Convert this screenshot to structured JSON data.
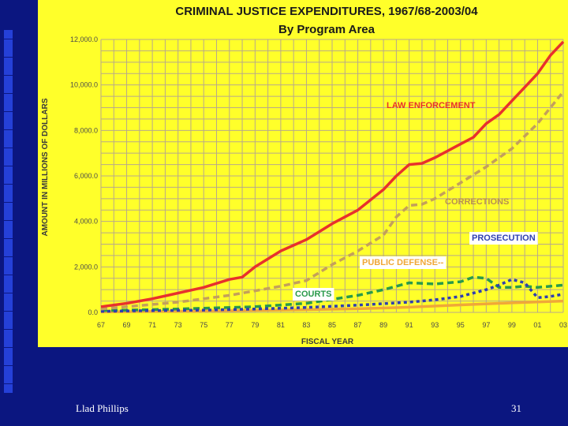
{
  "footer": {
    "author": "Llad Phillips",
    "page": "31"
  },
  "colors": {
    "slide_background": "#0b1680",
    "chart_background": "#ffff2a",
    "grid": "#b8a98a",
    "law_enforcement": "#e8312c",
    "corrections": "#c4a05a",
    "prosecution": "#2f3fb0",
    "public_defense": "#f0a838",
    "courts": "#2a9a4a"
  },
  "chart_data": {
    "type": "line",
    "title": "CRIMINAL JUSTICE EXPENDITURES, 1967/68-2003/04",
    "subtitle": "By Program Area",
    "xlabel": "FISCAL YEAR",
    "ylabel": "AMOUNT IN MILLIONS OF DOLLARS",
    "ylim": [
      0,
      12000
    ],
    "xlim": [
      67,
      103
    ],
    "y_ticks": [
      "0.0",
      "2,000.0",
      "4,000.0",
      "6,000.0",
      "8,000.0",
      "10,000.0",
      "12,000.0"
    ],
    "x_ticks": [
      "67",
      "69",
      "71",
      "73",
      "75",
      "77",
      "79",
      "81",
      "83",
      "85",
      "87",
      "89",
      "91",
      "93",
      "95",
      "97",
      "99",
      "01",
      "03"
    ],
    "grid": true,
    "series": [
      {
        "name": "LAW ENFORCEMENT",
        "key": "law_enforcement",
        "dash": "",
        "x": [
          67,
          69,
          71,
          73,
          75,
          77,
          78,
          79,
          81,
          83,
          85,
          87,
          89,
          90,
          91,
          92,
          93,
          95,
          96,
          97,
          98,
          99,
          100,
          101,
          102,
          103
        ],
        "values": [
          250,
          400,
          600,
          850,
          1100,
          1450,
          1550,
          2000,
          2700,
          3200,
          3900,
          4500,
          5400,
          6000,
          6500,
          6550,
          6800,
          7400,
          7700,
          8300,
          8700,
          9300,
          9900,
          10500,
          11300,
          11900
        ]
      },
      {
        "name": "CORRECTIONS",
        "key": "corrections",
        "dash": "8,5",
        "x": [
          67,
          69,
          71,
          73,
          75,
          77,
          79,
          81,
          83,
          85,
          87,
          89,
          90,
          91,
          92,
          93,
          95,
          97,
          99,
          101,
          103
        ],
        "values": [
          150,
          250,
          350,
          450,
          600,
          750,
          950,
          1150,
          1400,
          2100,
          2700,
          3400,
          4200,
          4700,
          4750,
          5000,
          5700,
          6400,
          7200,
          8300,
          9700
        ]
      },
      {
        "name": "PROSECUTION",
        "key": "prosecution",
        "dash": "4,4",
        "x": [
          67,
          71,
          75,
          79,
          83,
          87,
          91,
          93,
          95,
          97,
          98,
          99,
          100,
          101,
          102,
          103
        ],
        "values": [
          50,
          80,
          100,
          150,
          220,
          320,
          450,
          550,
          700,
          1000,
          1200,
          1450,
          1300,
          650,
          700,
          800
        ]
      },
      {
        "name": "PUBLIC DEFENSE",
        "key": "public_defense",
        "dash": "",
        "x": [
          67,
          71,
          75,
          79,
          83,
          87,
          91,
          95,
          99,
          103
        ],
        "values": [
          20,
          40,
          60,
          90,
          120,
          160,
          230,
          330,
          420,
          500
        ]
      },
      {
        "name": "COURTS",
        "key": "courts",
        "dash": "8,5",
        "x": [
          67,
          71,
          75,
          79,
          83,
          87,
          89,
          91,
          93,
          95,
          96,
          97,
          98,
          99,
          100,
          101,
          103
        ],
        "values": [
          80,
          120,
          180,
          250,
          400,
          750,
          1000,
          1300,
          1250,
          1350,
          1550,
          1500,
          1100,
          1100,
          1150,
          1100,
          1200
        ]
      }
    ],
    "annotations": [
      {
        "text": "LAW ENFORCEMENT",
        "series": "law_enforcement",
        "box": false
      },
      {
        "text": "CORRECTIONS",
        "series": "corrections",
        "box": false
      },
      {
        "text": "PROSECUTION",
        "series": "prosecution",
        "box": true
      },
      {
        "text": "PUBLIC DEFENSE--",
        "series": "public_defense",
        "box": true
      },
      {
        "text": "COURTS",
        "series": "courts",
        "box": true
      }
    ]
  }
}
